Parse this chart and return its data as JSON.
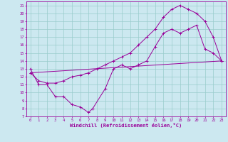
{
  "xlabel": "Windchill (Refroidissement éolien,°C)",
  "bg_color": "#cce8f0",
  "line_color": "#990099",
  "grid_color": "#99cccc",
  "xlim": [
    -0.5,
    23.5
  ],
  "ylim": [
    7,
    21.5
  ],
  "xticks": [
    0,
    1,
    2,
    3,
    4,
    5,
    6,
    7,
    8,
    9,
    10,
    11,
    12,
    13,
    14,
    15,
    16,
    17,
    18,
    19,
    20,
    21,
    22,
    23
  ],
  "yticks": [
    7,
    8,
    9,
    10,
    11,
    12,
    13,
    14,
    15,
    16,
    17,
    18,
    19,
    20,
    21
  ],
  "line1_x": [
    0,
    1,
    2,
    3,
    4,
    5,
    6,
    7,
    7.5,
    9,
    10,
    11,
    12,
    13,
    14,
    15,
    16,
    17,
    18,
    19,
    20,
    21,
    22,
    23
  ],
  "line1_y": [
    13,
    11,
    11,
    9.5,
    9.5,
    8.5,
    8.2,
    7.5,
    8.0,
    10.5,
    13,
    13.5,
    13,
    13.5,
    14,
    15.8,
    17.5,
    18,
    17.5,
    18,
    18.5,
    15.5,
    15,
    14
  ],
  "line2_x": [
    0,
    1,
    2,
    3,
    4,
    5,
    6,
    7,
    8,
    9,
    10,
    11,
    12,
    13,
    14,
    15,
    16,
    17,
    18,
    19,
    20,
    21,
    22,
    23
  ],
  "line2_y": [
    12.5,
    11.5,
    11.2,
    11.2,
    11.5,
    12.0,
    12.2,
    12.5,
    13.0,
    13.5,
    14.0,
    14.5,
    15.0,
    16.0,
    17.0,
    18.0,
    19.5,
    20.5,
    21.0,
    20.5,
    20.0,
    19.0,
    17.0,
    14.0
  ],
  "line3_x": [
    0,
    23
  ],
  "line3_y": [
    12.5,
    14.0
  ]
}
